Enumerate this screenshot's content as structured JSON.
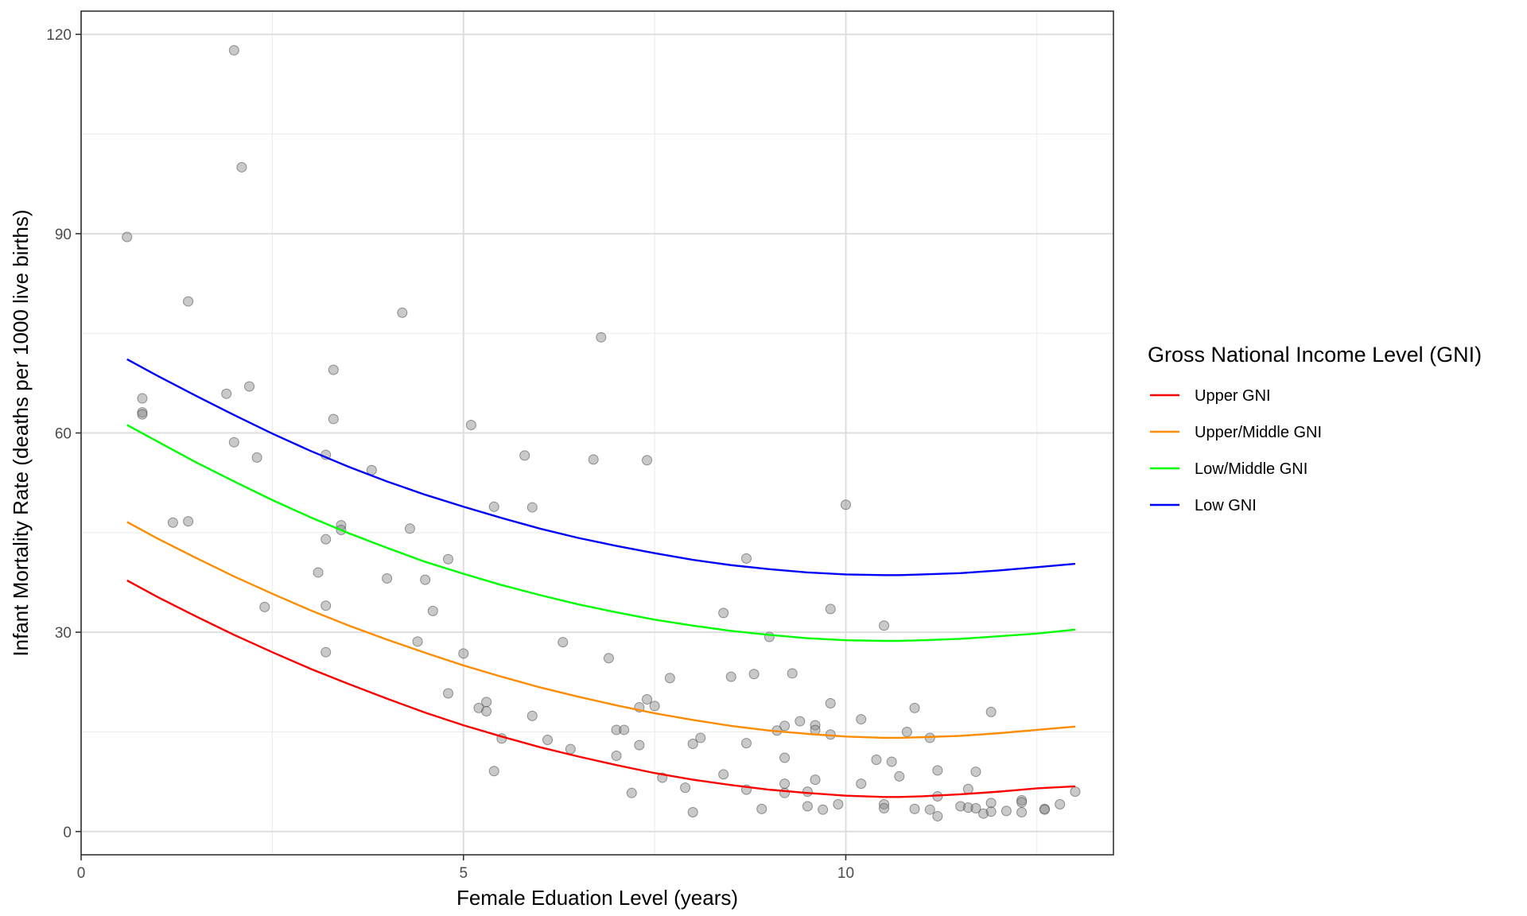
{
  "chart_data": {
    "type": "scatter",
    "title": "",
    "xlabel": "Female Eduation Level (years)",
    "ylabel": "Infant Mortality Rate (deaths per 1000 live births)",
    "xlim": [
      0,
      13.5
    ],
    "ylim": [
      -3.5,
      123.5
    ],
    "x_ticks": [
      0,
      5,
      10
    ],
    "y_ticks": [
      0,
      30,
      60,
      90,
      120
    ],
    "grid": true,
    "legend": {
      "title": "Gross National Income Level (GNI)",
      "position": "right"
    },
    "point_color": "#888888",
    "points": [
      [
        0.6,
        89.5
      ],
      [
        0.8,
        65.2
      ],
      [
        0.8,
        63.1
      ],
      [
        0.8,
        62.8
      ],
      [
        1.2,
        46.5
      ],
      [
        1.4,
        46.7
      ],
      [
        1.4,
        79.8
      ],
      [
        1.9,
        65.9
      ],
      [
        2.0,
        117.6
      ],
      [
        2.0,
        58.6
      ],
      [
        2.1,
        100.0
      ],
      [
        2.2,
        67.0
      ],
      [
        2.3,
        56.3
      ],
      [
        2.4,
        33.8
      ],
      [
        3.1,
        39.0
      ],
      [
        3.2,
        56.7
      ],
      [
        3.2,
        44.0
      ],
      [
        3.2,
        34.0
      ],
      [
        3.2,
        27.0
      ],
      [
        3.3,
        69.5
      ],
      [
        3.3,
        62.1
      ],
      [
        3.4,
        46.1
      ],
      [
        3.4,
        45.4
      ],
      [
        3.8,
        54.4
      ],
      [
        4.0,
        38.1
      ],
      [
        4.2,
        78.1
      ],
      [
        4.3,
        45.6
      ],
      [
        4.4,
        28.6
      ],
      [
        4.5,
        37.9
      ],
      [
        4.6,
        33.2
      ],
      [
        4.8,
        41.0
      ],
      [
        4.8,
        20.8
      ],
      [
        5.0,
        26.8
      ],
      [
        5.1,
        61.2
      ],
      [
        5.2,
        18.6
      ],
      [
        5.3,
        19.5
      ],
      [
        5.3,
        18.1
      ],
      [
        5.4,
        48.9
      ],
      [
        5.4,
        9.1
      ],
      [
        5.5,
        14.0
      ],
      [
        5.8,
        56.6
      ],
      [
        5.9,
        48.8
      ],
      [
        5.9,
        17.4
      ],
      [
        6.1,
        13.8
      ],
      [
        6.3,
        28.5
      ],
      [
        6.4,
        12.4
      ],
      [
        6.7,
        56.0
      ],
      [
        6.8,
        74.4
      ],
      [
        6.9,
        26.1
      ],
      [
        7.0,
        11.4
      ],
      [
        7.0,
        15.3
      ],
      [
        7.1,
        15.3
      ],
      [
        7.2,
        5.8
      ],
      [
        7.3,
        18.7
      ],
      [
        7.3,
        13.0
      ],
      [
        7.4,
        55.9
      ],
      [
        7.4,
        19.9
      ],
      [
        7.5,
        18.9
      ],
      [
        7.6,
        8.1
      ],
      [
        7.7,
        23.1
      ],
      [
        7.9,
        6.6
      ],
      [
        8.0,
        13.2
      ],
      [
        8.0,
        2.9
      ],
      [
        8.1,
        14.1
      ],
      [
        8.4,
        32.9
      ],
      [
        8.4,
        8.6
      ],
      [
        8.5,
        23.3
      ],
      [
        8.7,
        41.1
      ],
      [
        8.7,
        13.3
      ],
      [
        8.7,
        6.3
      ],
      [
        8.8,
        23.7
      ],
      [
        8.9,
        3.4
      ],
      [
        9.0,
        29.3
      ],
      [
        9.1,
        15.2
      ],
      [
        9.2,
        15.9
      ],
      [
        9.2,
        11.1
      ],
      [
        9.2,
        7.2
      ],
      [
        9.2,
        5.8
      ],
      [
        9.3,
        23.8
      ],
      [
        9.4,
        16.6
      ],
      [
        9.5,
        6.0
      ],
      [
        9.5,
        3.8
      ],
      [
        9.6,
        16.0
      ],
      [
        9.6,
        15.3
      ],
      [
        9.6,
        7.8
      ],
      [
        9.7,
        3.3
      ],
      [
        9.8,
        33.5
      ],
      [
        9.8,
        19.3
      ],
      [
        9.8,
        14.6
      ],
      [
        9.9,
        4.1
      ],
      [
        10.0,
        49.2
      ],
      [
        10.2,
        16.9
      ],
      [
        10.2,
        7.2
      ],
      [
        10.4,
        10.8
      ],
      [
        10.5,
        31.0
      ],
      [
        10.5,
        4.1
      ],
      [
        10.5,
        3.5
      ],
      [
        10.6,
        10.5
      ],
      [
        10.7,
        8.3
      ],
      [
        10.8,
        15.0
      ],
      [
        10.9,
        18.6
      ],
      [
        10.9,
        3.4
      ],
      [
        11.1,
        14.1
      ],
      [
        11.1,
        3.3
      ],
      [
        11.2,
        9.2
      ],
      [
        11.2,
        5.3
      ],
      [
        11.2,
        2.3
      ],
      [
        11.5,
        3.8
      ],
      [
        11.6,
        6.4
      ],
      [
        11.6,
        3.6
      ],
      [
        11.7,
        9.0
      ],
      [
        11.7,
        3.5
      ],
      [
        11.8,
        2.7
      ],
      [
        11.9,
        18.0
      ],
      [
        11.9,
        4.3
      ],
      [
        11.9,
        3.0
      ],
      [
        12.1,
        3.1
      ],
      [
        12.3,
        4.7
      ],
      [
        12.3,
        4.4
      ],
      [
        12.3,
        2.9
      ],
      [
        12.6,
        3.4
      ],
      [
        12.6,
        3.3
      ],
      [
        12.8,
        4.1
      ],
      [
        13.0,
        6.0
      ]
    ],
    "series": [
      {
        "name": "Upper GNI",
        "color": "#FF0000",
        "x": [
          0.6,
          1,
          1.5,
          2,
          2.5,
          3,
          3.5,
          4,
          4.5,
          5,
          5.5,
          6,
          6.5,
          7,
          7.5,
          8,
          8.5,
          9,
          9.5,
          10,
          10.5,
          10.7,
          11,
          11.5,
          12,
          12.5,
          13
        ],
        "y": [
          37.8,
          35.3,
          32.4,
          29.6,
          27.0,
          24.5,
          22.2,
          20.0,
          17.9,
          16.0,
          14.3,
          12.7,
          11.3,
          10.0,
          8.8,
          7.8,
          7.0,
          6.3,
          5.8,
          5.4,
          5.2,
          5.2,
          5.3,
          5.6,
          6.0,
          6.5,
          6.8
        ]
      },
      {
        "name": "Upper/Middle GNI",
        "color": "#FF8C00",
        "x": [
          0.6,
          1,
          1.5,
          2,
          2.5,
          3,
          3.5,
          4,
          4.5,
          5,
          5.5,
          6,
          6.5,
          7,
          7.5,
          8,
          8.5,
          9,
          9.5,
          10,
          10.5,
          10.7,
          11,
          11.5,
          12,
          12.5,
          13
        ],
        "y": [
          46.6,
          44.1,
          41.2,
          38.4,
          35.8,
          33.3,
          31.0,
          28.9,
          26.9,
          25.0,
          23.3,
          21.7,
          20.3,
          19.0,
          17.8,
          16.8,
          15.9,
          15.2,
          14.7,
          14.3,
          14.1,
          14.1,
          14.2,
          14.4,
          14.8,
          15.3,
          15.8
        ]
      },
      {
        "name": "Low/Middle GNI",
        "color": "#00FF00",
        "x": [
          0.6,
          1,
          1.5,
          2,
          2.5,
          3,
          3.5,
          4,
          4.5,
          5,
          5.5,
          6,
          6.5,
          7,
          7.5,
          8,
          8.5,
          9,
          9.5,
          10,
          10.5,
          10.7,
          11,
          11.5,
          12,
          12.5,
          13
        ],
        "y": [
          61.2,
          58.7,
          55.6,
          52.7,
          49.9,
          47.3,
          44.9,
          42.7,
          40.6,
          38.8,
          37.1,
          35.6,
          34.2,
          33.0,
          31.9,
          31.0,
          30.2,
          29.6,
          29.1,
          28.8,
          28.7,
          28.7,
          28.8,
          29.0,
          29.4,
          29.8,
          30.4
        ]
      },
      {
        "name": "Low GNI",
        "color": "#0000FF",
        "x": [
          0.6,
          1,
          1.5,
          2,
          2.5,
          3,
          3.5,
          4,
          4.5,
          5,
          5.5,
          6,
          6.5,
          7,
          7.5,
          8,
          8.5,
          9,
          9.5,
          10,
          10.5,
          10.7,
          11,
          11.5,
          12,
          12.5,
          13
        ],
        "y": [
          71.1,
          68.6,
          65.6,
          62.7,
          59.9,
          57.3,
          54.9,
          52.7,
          50.7,
          48.9,
          47.2,
          45.6,
          44.2,
          43.0,
          41.9,
          40.9,
          40.1,
          39.5,
          39.0,
          38.7,
          38.6,
          38.6,
          38.7,
          38.9,
          39.3,
          39.8,
          40.3
        ]
      }
    ]
  }
}
